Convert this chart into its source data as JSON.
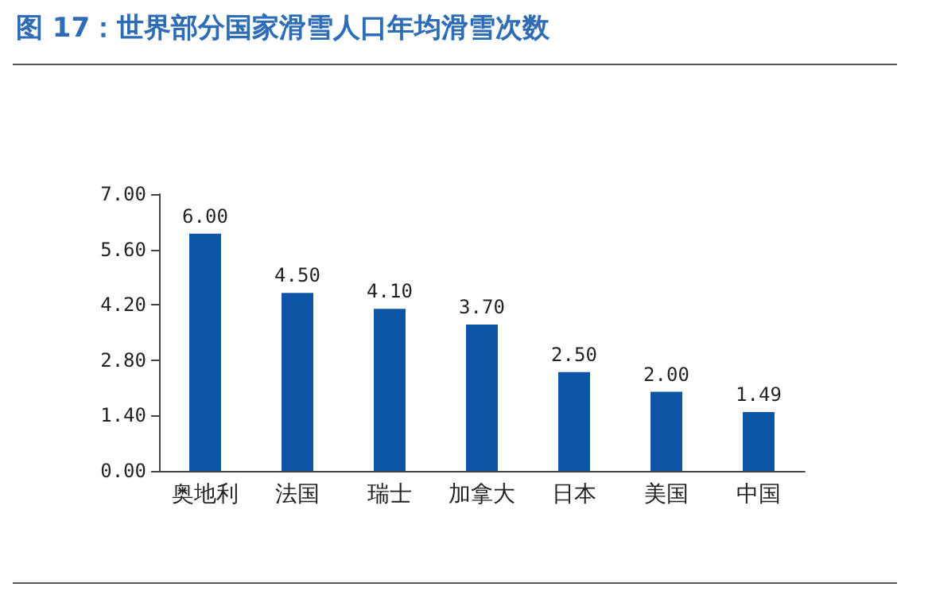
{
  "chart_data": {
    "type": "bar",
    "title": "图 17：世界部分国家滑雪人口年均滑雪次数",
    "categories": [
      "奥地利",
      "法国",
      "瑞士",
      "加拿大",
      "日本",
      "美国",
      "中国"
    ],
    "values": [
      6.0,
      4.5,
      4.1,
      3.7,
      2.5,
      2.0,
      1.49
    ],
    "value_labels": [
      "6.00",
      "4.50",
      "4.10",
      "3.70",
      "2.50",
      "2.00",
      "1.49"
    ],
    "color": "#0d56a6",
    "ylim": [
      0,
      7
    ],
    "yticks": [
      {
        "value": 0,
        "label": "0.00"
      },
      {
        "value": 1.4,
        "label": "1.40"
      },
      {
        "value": 2.8,
        "label": "2.80"
      },
      {
        "value": 4.2,
        "label": "4.20"
      },
      {
        "value": 5.6,
        "label": "5.60"
      },
      {
        "value": 7,
        "label": "7.00"
      }
    ],
    "grid": false
  }
}
